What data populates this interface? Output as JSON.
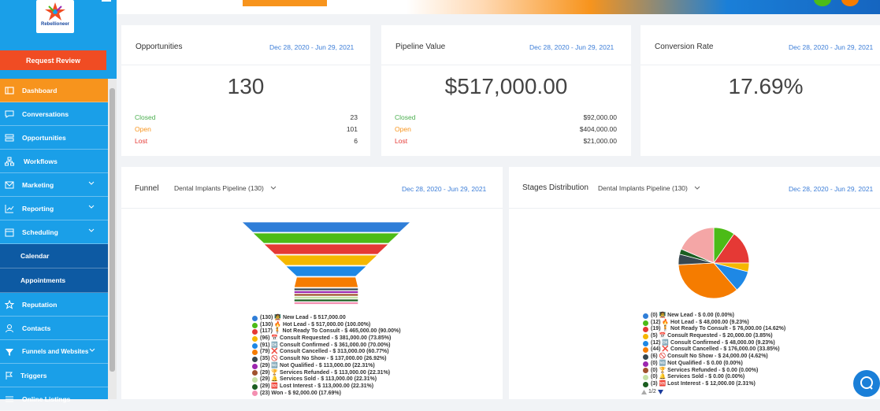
{
  "sidebar": {
    "logo_text": "Rebellioneer",
    "request_button": "Request Review",
    "items": [
      {
        "label": "Dashboard",
        "icon": "dashboard-icon"
      },
      {
        "label": "Conversations",
        "icon": "chat-icon"
      },
      {
        "label": "Opportunities",
        "icon": "stack-icon"
      },
      {
        "label": "Workflows",
        "icon": "workflow-icon"
      },
      {
        "label": "Marketing",
        "icon": "mail-icon"
      },
      {
        "label": "Reporting",
        "icon": "chart-icon"
      },
      {
        "label": "Scheduling",
        "icon": "calendar-icon"
      },
      {
        "label": "Calendar"
      },
      {
        "label": "Appointments"
      },
      {
        "label": "Reputation",
        "icon": "star-icon"
      },
      {
        "label": "Contacts",
        "icon": "user-icon"
      },
      {
        "label": "Funnels and Websites",
        "icon": "funnel-icon"
      },
      {
        "label": "Triggers",
        "icon": "flag-icon"
      },
      {
        "label": "Online Listings",
        "icon": "list-icon"
      }
    ]
  },
  "cards": {
    "opportunities": {
      "title": "Opportunities",
      "date": "Dec 28, 2020 - Jun 29, 2021",
      "value": "130",
      "stats": [
        {
          "label": "Closed",
          "value": "23",
          "color": "#4caf50"
        },
        {
          "label": "Open",
          "value": "101",
          "color": "#f7941d"
        },
        {
          "label": "Lost",
          "value": "6",
          "color": "#e53935"
        }
      ]
    },
    "pipeline": {
      "title": "Pipeline Value",
      "date": "Dec 28, 2020 - Jun 29, 2021",
      "value": "$517,000.00",
      "stats": [
        {
          "label": "Closed",
          "value": "$92,000.00",
          "color": "#4caf50"
        },
        {
          "label": "Open",
          "value": "$404,000.00",
          "color": "#f7941d"
        },
        {
          "label": "Lost",
          "value": "$21,000.00",
          "color": "#e53935"
        }
      ]
    },
    "conversion": {
      "title": "Conversion Rate",
      "date": "Dec 28, 2020 - Jun 29, 2021",
      "value": "17.69%"
    }
  },
  "funnel": {
    "title": "Funnel",
    "pipeline_select": "Dental Implants Pipeline (130)",
    "date": "Dec 28, 2020 - Jun 29, 2021",
    "legend": [
      {
        "text": "(130) 🧑‍🏫 New Lead - $ 517,000.00",
        "color": "#2f7ed8"
      },
      {
        "text": "(130) 🔥 Hot Lead - $ 517,000.00 (100.00%)",
        "color": "#4cbb17"
      },
      {
        "text": "(117) 🧍 Not Ready To Consult - $ 465,000.00 (90.00%)",
        "color": "#e53935"
      },
      {
        "text": "(96) 📅 Consult Requested - $ 381,000.00 (73.85%)",
        "color": "#f5b700"
      },
      {
        "text": "(91) 🆗 Consult Confirmed - $ 361,000.00 (70.00%)",
        "color": "#1e88e5"
      },
      {
        "text": "(79) ❌ Consult Cancelled - $ 313,000.00 (60.77%)",
        "color": "#f57c00"
      },
      {
        "text": "(35) 🚫 Consult No Show - $ 137,000.00 (26.92%)",
        "color": "#37474f"
      },
      {
        "text": "(29) 🆖 Not Qualified - $ 113,000.00 (22.31%)",
        "color": "#9c27b0"
      },
      {
        "text": "(29) 🏆 Services Refunded - $ 113,000.00 (22.31%)",
        "color": "#a0522d"
      },
      {
        "text": "(29) 🔔 Services Sold - $ 113,000.00 (22.31%)",
        "color": "#c5e1a5"
      },
      {
        "text": "(29) 🆘 Lost Interest - $ 113,000.00 (22.31%)",
        "color": "#1b5e20"
      },
      {
        "text": "(23) Won - $ 92,000.00 (17.69%)",
        "color": "#f48fb1"
      }
    ]
  },
  "stages": {
    "title": "Stages Distribution",
    "pipeline_select": "Dental Implants Pipeline (130)",
    "date": "Dec 28, 2020 - Jun 29, 2021",
    "legend": [
      {
        "text": "(0) 🧑‍🏫 New Lead - $ 0.00 (0.00%)",
        "color": "#2f7ed8"
      },
      {
        "text": "(12) 🔥 Hot Lead - $ 48,000.00 (9.23%)",
        "color": "#4cbb17"
      },
      {
        "text": "(19) 🧍 Not Ready To Consult - $ 76,000.00 (14.62%)",
        "color": "#e53935"
      },
      {
        "text": "(5) 📅 Consult Requested - $ 20,000.00 (3.85%)",
        "color": "#f5b700"
      },
      {
        "text": "(12) 🆗 Consult Confirmed - $ 48,000.00 (9.23%)",
        "color": "#1e88e5"
      },
      {
        "text": "(44) ❌ Consult Cancelled - $ 176,000.00 (33.85%)",
        "color": "#f57c00"
      },
      {
        "text": "(6) 🚫 Consult No Show - $ 24,000.00 (4.62%)",
        "color": "#37474f"
      },
      {
        "text": "(0) 🆖 Not Qualified - $ 0.00 (0.00%)",
        "color": "#9c27b0"
      },
      {
        "text": "(0) 🏆 Services Refunded - $ 0.00 (0.00%)",
        "color": "#a0522d"
      },
      {
        "text": "(0) 🔔 Services Sold - $ 0.00 (0.00%)",
        "color": "#c5e1a5"
      },
      {
        "text": "(3) 🆘 Lost Interest - $ 12,000.00 (2.31%)",
        "color": "#1b5e20"
      }
    ],
    "pager": "1/2"
  },
  "chart_data": [
    {
      "type": "bar",
      "title": "Funnel",
      "categories": [
        "New Lead",
        "Hot Lead",
        "Not Ready To Consult",
        "Consult Requested",
        "Consult Confirmed",
        "Consult Cancelled",
        "Consult No Show",
        "Not Qualified",
        "Services Refunded",
        "Services Sold",
        "Lost Interest",
        "Won"
      ],
      "values": [
        130,
        130,
        117,
        96,
        91,
        79,
        35,
        29,
        29,
        29,
        29,
        23
      ]
    },
    {
      "type": "pie",
      "title": "Stages Distribution",
      "categories": [
        "New Lead",
        "Hot Lead",
        "Not Ready To Consult",
        "Consult Requested",
        "Consult Confirmed",
        "Consult Cancelled",
        "Consult No Show",
        "Not Qualified",
        "Services Refunded",
        "Services Sold",
        "Lost Interest",
        "Won"
      ],
      "values": [
        0,
        9.23,
        14.62,
        3.85,
        9.23,
        33.85,
        4.62,
        0,
        0,
        0,
        2.31,
        17.69
      ],
      "colors": [
        "#2f7ed8",
        "#4cbb17",
        "#e53935",
        "#f5b700",
        "#1e88e5",
        "#f57c00",
        "#37474f",
        "#9c27b0",
        "#a0522d",
        "#c5e1a5",
        "#1b5e20",
        "#f4a6a6"
      ]
    }
  ]
}
